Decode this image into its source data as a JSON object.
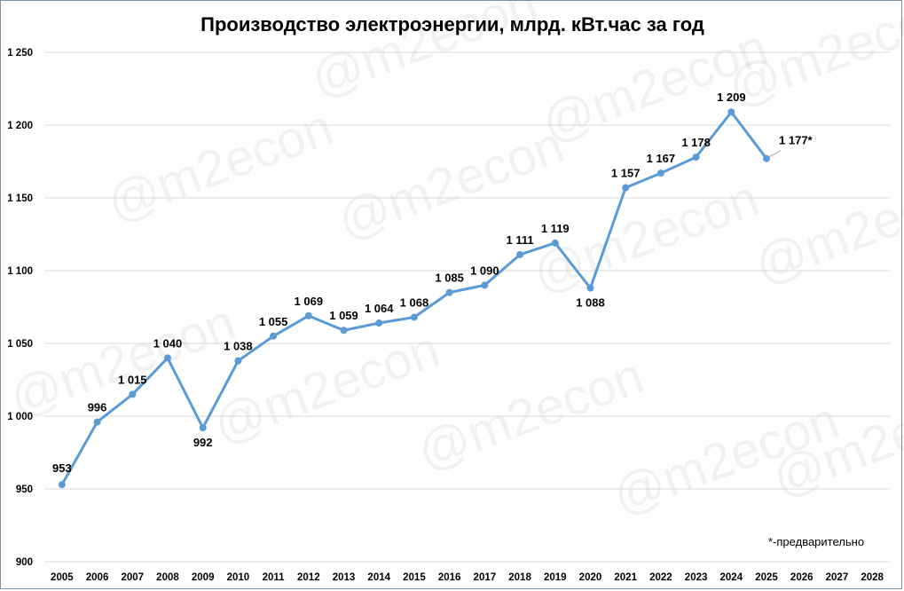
{
  "chart_data": {
    "type": "line",
    "title": "Производство электроэнергии, млрд. кВт.час за год",
    "categories": [
      "2005",
      "2006",
      "2007",
      "2008",
      "2009",
      "2010",
      "2011",
      "2012",
      "2013",
      "2014",
      "2015",
      "2016",
      "2017",
      "2018",
      "2019",
      "2020",
      "2021",
      "2022",
      "2023",
      "2024",
      "2025",
      "2026",
      "2027",
      "2028"
    ],
    "series": [
      {
        "values": [
          953,
          996,
          1015,
          1040,
          992,
          1038,
          1055,
          1069,
          1059,
          1064,
          1068,
          1085,
          1090,
          1111,
          1119,
          1088,
          1157,
          1167,
          1178,
          1209,
          1177,
          null,
          null,
          null
        ],
        "labels": [
          "953",
          "996",
          "1 015",
          "1 040",
          "992",
          "1 038",
          "1 055",
          "1 069",
          "1 059",
          "1 064",
          "1 068",
          "1 085",
          "1 090",
          "1 111",
          "1 119",
          "1 088",
          "1 157",
          "1 167",
          "1 178",
          "1 209",
          "1 177*",
          "",
          "",
          ""
        ]
      }
    ],
    "y_ticks": [
      900,
      950,
      1000,
      1050,
      1100,
      1150,
      1200,
      1250
    ],
    "y_tick_labels": [
      "900",
      "950",
      "1 000",
      "1 050",
      "1 100",
      "1 150",
      "1 200",
      "1 250"
    ],
    "ylim": [
      900,
      1250
    ],
    "xlabel": "",
    "ylabel": "",
    "grid": "horizontal",
    "legend": "none",
    "line_color": "#5b9bd5",
    "grid_color": "#d9d9d9",
    "note": "*-предварительно",
    "watermark": "@m2econ"
  }
}
